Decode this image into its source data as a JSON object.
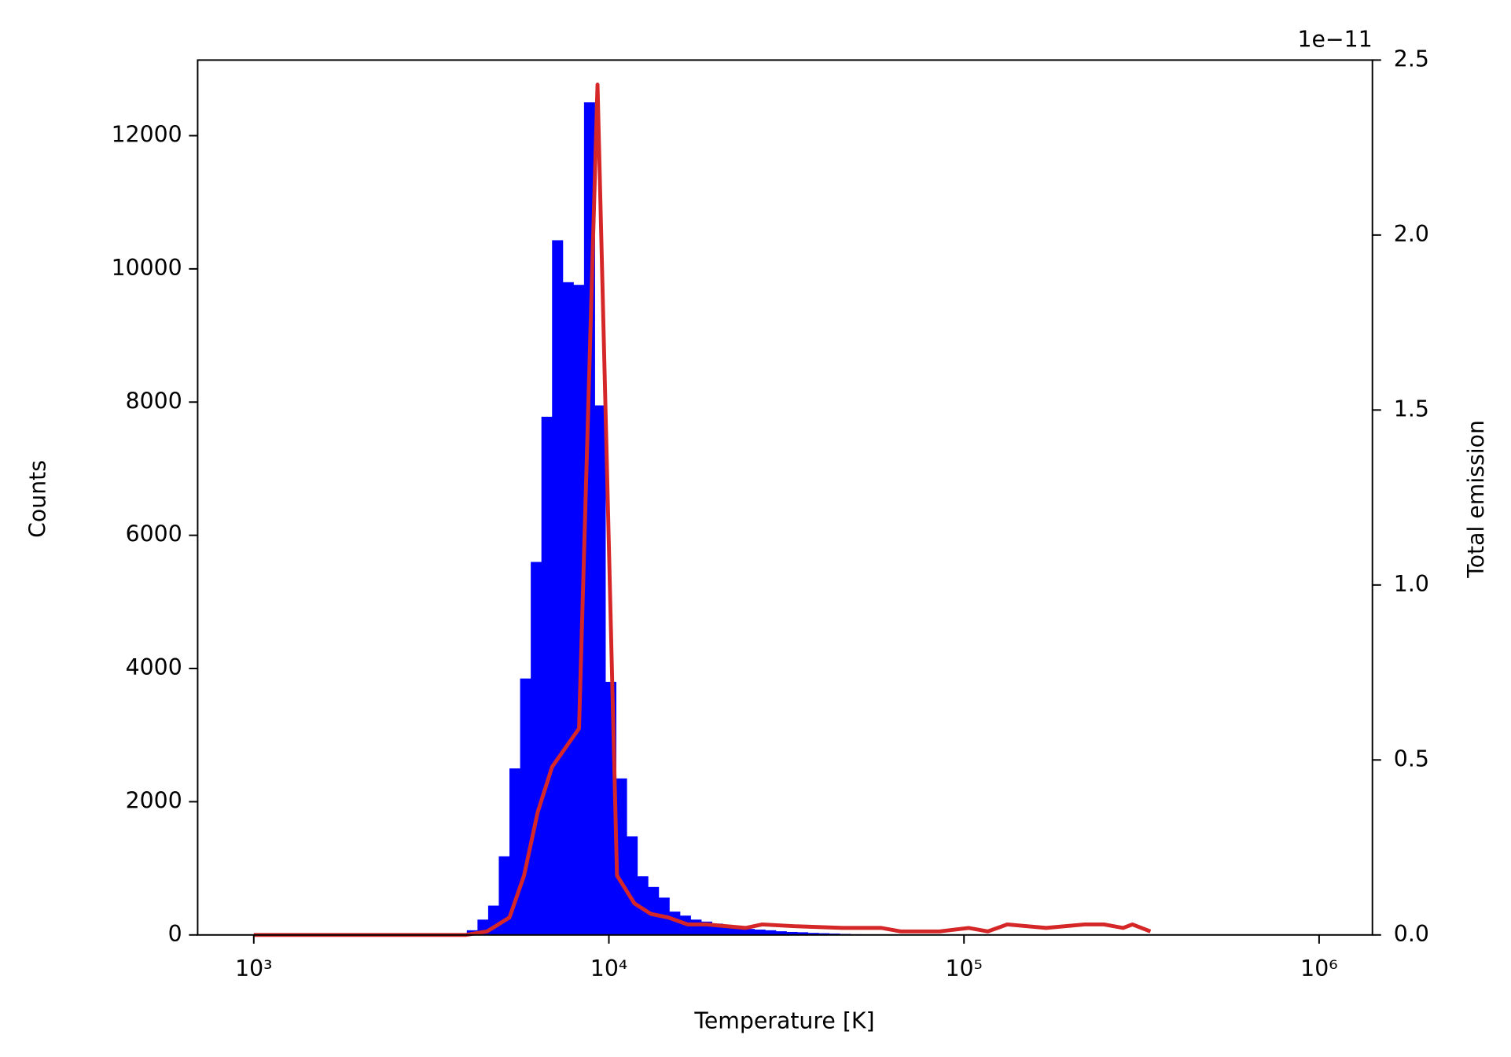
{
  "chart_data": {
    "type": "histogram",
    "xlabel": "Temperature [K]",
    "ylabel": "Counts",
    "y2label": "Total emission",
    "y2_offset_label": "1e−11",
    "xscale": "log",
    "xlim": [
      695,
      1413000
    ],
    "xticks": [
      {
        "value": 1000,
        "label": "10³"
      },
      {
        "value": 10000,
        "label": "10⁴"
      },
      {
        "value": 100000,
        "label": "10⁵"
      },
      {
        "value": 1000000,
        "label": "10⁶"
      }
    ],
    "ylim": [
      0,
      13135
    ],
    "yticks": [
      0,
      2000,
      4000,
      6000,
      8000,
      10000,
      12000
    ],
    "y2lim": [
      0,
      2.5e-11
    ],
    "y2ticks": [
      {
        "value": 0,
        "label": "0.0"
      },
      {
        "value": 5e-12,
        "label": "0.5"
      },
      {
        "value": 1e-11,
        "label": "1.0"
      },
      {
        "value": 1.5e-11,
        "label": "1.5"
      },
      {
        "value": 2e-11,
        "label": "2.0"
      },
      {
        "value": 2.5e-11,
        "label": "2.5"
      }
    ],
    "y2color": "#d62728",
    "color": "#0000ff",
    "bins": [
      3467.4,
      3715.4,
      3981.1,
      4265.8,
      4570.9,
      4897.8,
      5248.1,
      5623.4,
      6025.6,
      6456.5,
      6918.3,
      7413.1,
      7943.3,
      8511.4,
      9120.1,
      9772.4,
      10471,
      11220,
      12023,
      12882,
      13804,
      14791,
      15849,
      16982,
      18197,
      19498,
      20893,
      22387,
      23988,
      25704,
      27542,
      29512,
      31623,
      33884,
      36308,
      38905,
      41687,
      44668,
      47863,
      51286,
      54954,
      58884,
      63096
    ],
    "values": [
      5,
      20,
      70,
      230,
      440,
      1180,
      2500,
      3850,
      5600,
      7780,
      10430,
      9800,
      9760,
      12500,
      7950,
      3800,
      2350,
      1480,
      880,
      720,
      560,
      350,
      290,
      230,
      200,
      170,
      140,
      110,
      90,
      80,
      70,
      55,
      45,
      40,
      30,
      25,
      20,
      15,
      10,
      8,
      6,
      5
    ],
    "line": {
      "type": "line",
      "axis": "y2",
      "color": "#d62728",
      "x": [
        1000,
        3950,
        4540,
        5250,
        5770,
        6300,
        6918,
        8240,
        9290,
        10540,
        11800,
        13130,
        14690,
        16670,
        18870,
        24260,
        27040,
        33270,
        45500,
        58500,
        66400,
        85300,
        103000,
        116700,
        132400,
        170300,
        218800,
        247900,
        280500,
        298000,
        335000
      ],
      "values": [
        0,
        0,
        1e-13,
        5e-13,
        1.7e-12,
        3.5e-12,
        4.8e-12,
        5.9e-12,
        2.43e-11,
        1.7e-12,
        9e-13,
        6e-13,
        5e-13,
        3e-13,
        3e-13,
        2e-13,
        3e-13,
        2.5e-13,
        2e-13,
        2e-13,
        1e-13,
        1e-13,
        2e-13,
        1e-13,
        3e-13,
        2e-13,
        3e-13,
        3e-13,
        2e-13,
        3e-13,
        1e-13
      ]
    }
  }
}
